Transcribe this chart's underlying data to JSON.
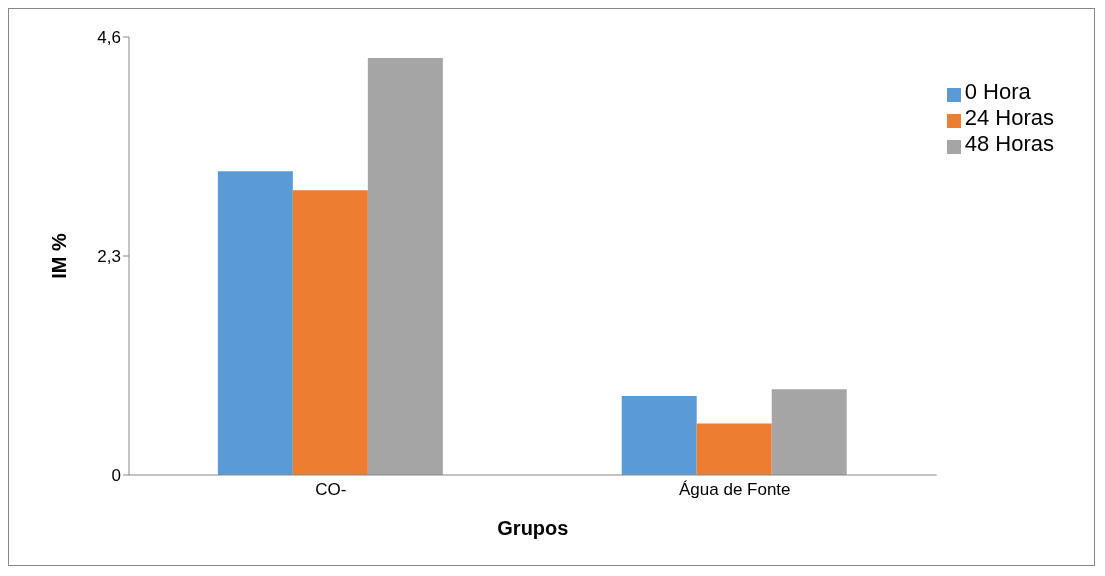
{
  "chart_data": {
    "type": "bar",
    "xlabel": "Grupos",
    "ylabel": "IM %",
    "categories": [
      "CO-",
      "Água de Fonte"
    ],
    "series": [
      {
        "name": "0 Hora",
        "color": "#5b9bd5",
        "values": [
          3.19,
          0.83
        ]
      },
      {
        "name": "24 Horas",
        "color": "#ed7d31",
        "values": [
          2.99,
          0.54
        ]
      },
      {
        "name": "48 Horas",
        "color": "#a5a5a5",
        "values": [
          4.38,
          0.9
        ]
      }
    ],
    "ylim": [
      0,
      4.6
    ],
    "yticks": [
      {
        "value": 0,
        "label": "0"
      },
      {
        "value": 2.3,
        "label": "2,3"
      },
      {
        "value": 4.6,
        "label": "4,6"
      }
    ],
    "legend": "top right",
    "grid": false
  }
}
